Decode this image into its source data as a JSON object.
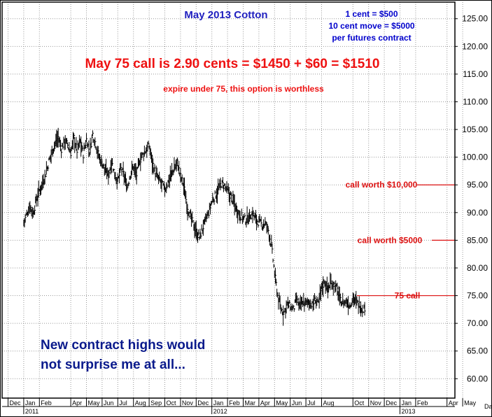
{
  "chart_data": {
    "type": "ohlc-bar",
    "title": "May 2013 Cotton",
    "notes": [
      "1 cent = $500",
      "10 cent move = $5000",
      "per futures contract"
    ],
    "headline": "May 75 call is 2.90 cents = $1450 + $60 = $1510",
    "subheadline": "expire under 75, this option is worthless",
    "comment_lines": [
      "New contract highs would",
      "not surprise me at all..."
    ],
    "levels": [
      {
        "label": "call worth $10,000",
        "value": 95
      },
      {
        "label": "call worth $5000",
        "value": 85
      },
      {
        "label": "75 call",
        "value": 75
      }
    ],
    "y_ticks": [
      60,
      65,
      70,
      75,
      80,
      85,
      90,
      95,
      100,
      105,
      110,
      115,
      120,
      125
    ],
    "y_tick_labels": [
      "60.00",
      "65.00",
      "70.00",
      "75.00",
      "80.00",
      "85.00",
      "90.00",
      "95.00",
      "100.00",
      "105.00",
      "110.00",
      "115.00",
      "120.00",
      "125.00"
    ],
    "ylim": [
      56.5,
      128
    ],
    "x_month_labels": [
      "Dec",
      "Jan",
      "Feb",
      "Apr",
      "May",
      "Jun",
      "Jul",
      "Aug",
      "Sep",
      "Oct",
      "Nov",
      "Dec",
      "Jan",
      "Feb",
      "Mar",
      "Apr",
      "May",
      "Jun",
      "Jul",
      "Aug",
      "Oct",
      "Nov",
      "Dec",
      "Jan",
      "Feb",
      "Apr",
      "May"
    ],
    "x_month_index": [
      0,
      1,
      2,
      4,
      5,
      6,
      7,
      8,
      9,
      10,
      11,
      12,
      13,
      14,
      15,
      16,
      17,
      18,
      19,
      20,
      22,
      23,
      24,
      25,
      26,
      28,
      29
    ],
    "x_year_labels": [
      "2011",
      "2012",
      "2013"
    ],
    "x_year_index": [
      1,
      13,
      25
    ],
    "x_end_label": "Da",
    "colors": {
      "title": "#1f1fbf",
      "notes": "#0000cc",
      "headline": "#ee1111",
      "comment": "#0a1a8c",
      "levels": "#dd1111",
      "bars": "#000000",
      "grid": "#999999"
    },
    "series": [
      {
        "points": [
          [
            1.0,
            88.2
          ],
          [
            1.2,
            89.8
          ],
          [
            1.4,
            91.2
          ],
          [
            1.6,
            89.8
          ],
          [
            1.8,
            92.3
          ],
          [
            2.0,
            94.0
          ],
          [
            2.2,
            95.4
          ],
          [
            2.4,
            97.0
          ],
          [
            2.6,
            99.2
          ],
          [
            2.8,
            101.0
          ],
          [
            3.0,
            102.5
          ],
          [
            3.2,
            103.6
          ],
          [
            3.4,
            101.5
          ],
          [
            3.6,
            103.0
          ],
          [
            3.8,
            102.2
          ],
          [
            4.0,
            100.8
          ],
          [
            4.2,
            103.5
          ],
          [
            4.4,
            101.2
          ],
          [
            4.6,
            102.8
          ],
          [
            4.8,
            100.5
          ],
          [
            5.0,
            103.2
          ],
          [
            5.2,
            101.0
          ],
          [
            5.4,
            104.2
          ],
          [
            5.6,
            102.3
          ],
          [
            5.8,
            100.0
          ],
          [
            6.0,
            99.0
          ],
          [
            6.2,
            97.5
          ],
          [
            6.4,
            96.8
          ],
          [
            6.6,
            99.2
          ],
          [
            6.8,
            97.0
          ],
          [
            7.0,
            95.6
          ],
          [
            7.2,
            97.9
          ],
          [
            7.4,
            96.6
          ],
          [
            7.6,
            94.5
          ],
          [
            7.8,
            97.0
          ],
          [
            8.0,
            98.3
          ],
          [
            8.2,
            96.8
          ],
          [
            8.4,
            99.4
          ],
          [
            8.6,
            100.5
          ],
          [
            8.8,
            101.3
          ],
          [
            9.0,
            102.0
          ],
          [
            9.2,
            99.2
          ],
          [
            9.4,
            97.0
          ],
          [
            9.6,
            96.0
          ],
          [
            9.8,
            95.2
          ],
          [
            10.0,
            94.1
          ],
          [
            10.2,
            95.5
          ],
          [
            10.4,
            96.8
          ],
          [
            10.6,
            98.0
          ],
          [
            10.8,
            99.0
          ],
          [
            11.0,
            96.5
          ],
          [
            11.2,
            95.0
          ],
          [
            11.4,
            91.5
          ],
          [
            11.6,
            89.5
          ],
          [
            11.8,
            88.0
          ],
          [
            12.0,
            86.5
          ],
          [
            12.2,
            85.5
          ],
          [
            12.4,
            87.0
          ],
          [
            12.6,
            88.6
          ],
          [
            12.8,
            90.0
          ],
          [
            13.0,
            92.0
          ],
          [
            13.2,
            93.0
          ],
          [
            13.4,
            94.0
          ],
          [
            13.6,
            95.2
          ],
          [
            13.8,
            94.8
          ],
          [
            14.0,
            93.8
          ],
          [
            14.2,
            93.0
          ],
          [
            14.4,
            91.8
          ],
          [
            14.6,
            90.5
          ],
          [
            14.8,
            89.6
          ],
          [
            15.0,
            89.0
          ],
          [
            15.2,
            88.6
          ],
          [
            15.4,
            89.4
          ],
          [
            15.6,
            89.8
          ],
          [
            15.8,
            88.8
          ],
          [
            16.0,
            88.2
          ],
          [
            16.2,
            87.8
          ],
          [
            16.4,
            88.0
          ],
          [
            16.6,
            86.8
          ],
          [
            16.8,
            84.0
          ],
          [
            17.0,
            79.0
          ],
          [
            17.2,
            75.0
          ],
          [
            17.4,
            72.5
          ],
          [
            17.6,
            72.0
          ],
          [
            17.8,
            73.5
          ],
          [
            18.0,
            73.0
          ],
          [
            18.2,
            72.5
          ],
          [
            18.4,
            74.2
          ],
          [
            18.6,
            73.0
          ],
          [
            18.8,
            73.8
          ],
          [
            19.0,
            73.5
          ],
          [
            19.2,
            74.0
          ],
          [
            19.4,
            73.2
          ],
          [
            19.6,
            74.3
          ],
          [
            19.8,
            73.4
          ],
          [
            20.0,
            76.5
          ],
          [
            20.2,
            77.5
          ],
          [
            20.4,
            76.2
          ],
          [
            20.6,
            77.4
          ],
          [
            20.8,
            77.0
          ],
          [
            21.0,
            76.0
          ],
          [
            21.2,
            74.0
          ],
          [
            21.4,
            73.7
          ],
          [
            21.6,
            73.9
          ],
          [
            21.8,
            73.2
          ],
          [
            22.0,
            74.7
          ],
          [
            22.2,
            73.8
          ],
          [
            22.4,
            73.4
          ],
          [
            22.6,
            72.5
          ],
          [
            22.8,
            73.0
          ]
        ]
      }
    ]
  }
}
